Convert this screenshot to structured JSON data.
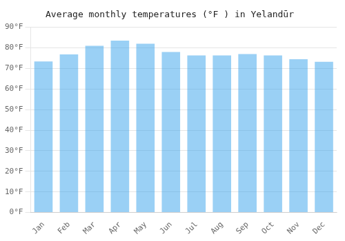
{
  "chart_data": {
    "type": "bar",
    "title": "Average monthly temperatures (°F ) in Yelandūr",
    "categories": [
      "Jan",
      "Feb",
      "Mar",
      "Apr",
      "May",
      "Jun",
      "Jul",
      "Aug",
      "Sep",
      "Oct",
      "Nov",
      "Dec"
    ],
    "values": [
      73.4,
      76.8,
      81.0,
      83.5,
      82.0,
      78.0,
      76.3,
      76.3,
      77.0,
      76.3,
      74.5,
      73.2
    ],
    "ylim": [
      0,
      90
    ],
    "yticks": [
      {
        "value": 0,
        "label": "0°F"
      },
      {
        "value": 10,
        "label": "10°F"
      },
      {
        "value": 20,
        "label": "20°F"
      },
      {
        "value": 30,
        "label": "30°F"
      },
      {
        "value": 40,
        "label": "40°F"
      },
      {
        "value": 50,
        "label": "50°F"
      },
      {
        "value": 60,
        "label": "60°F"
      },
      {
        "value": 70,
        "label": "70°F"
      },
      {
        "value": 80,
        "label": "80°F"
      },
      {
        "value": 90,
        "label": "90°F"
      }
    ],
    "grid": true
  }
}
